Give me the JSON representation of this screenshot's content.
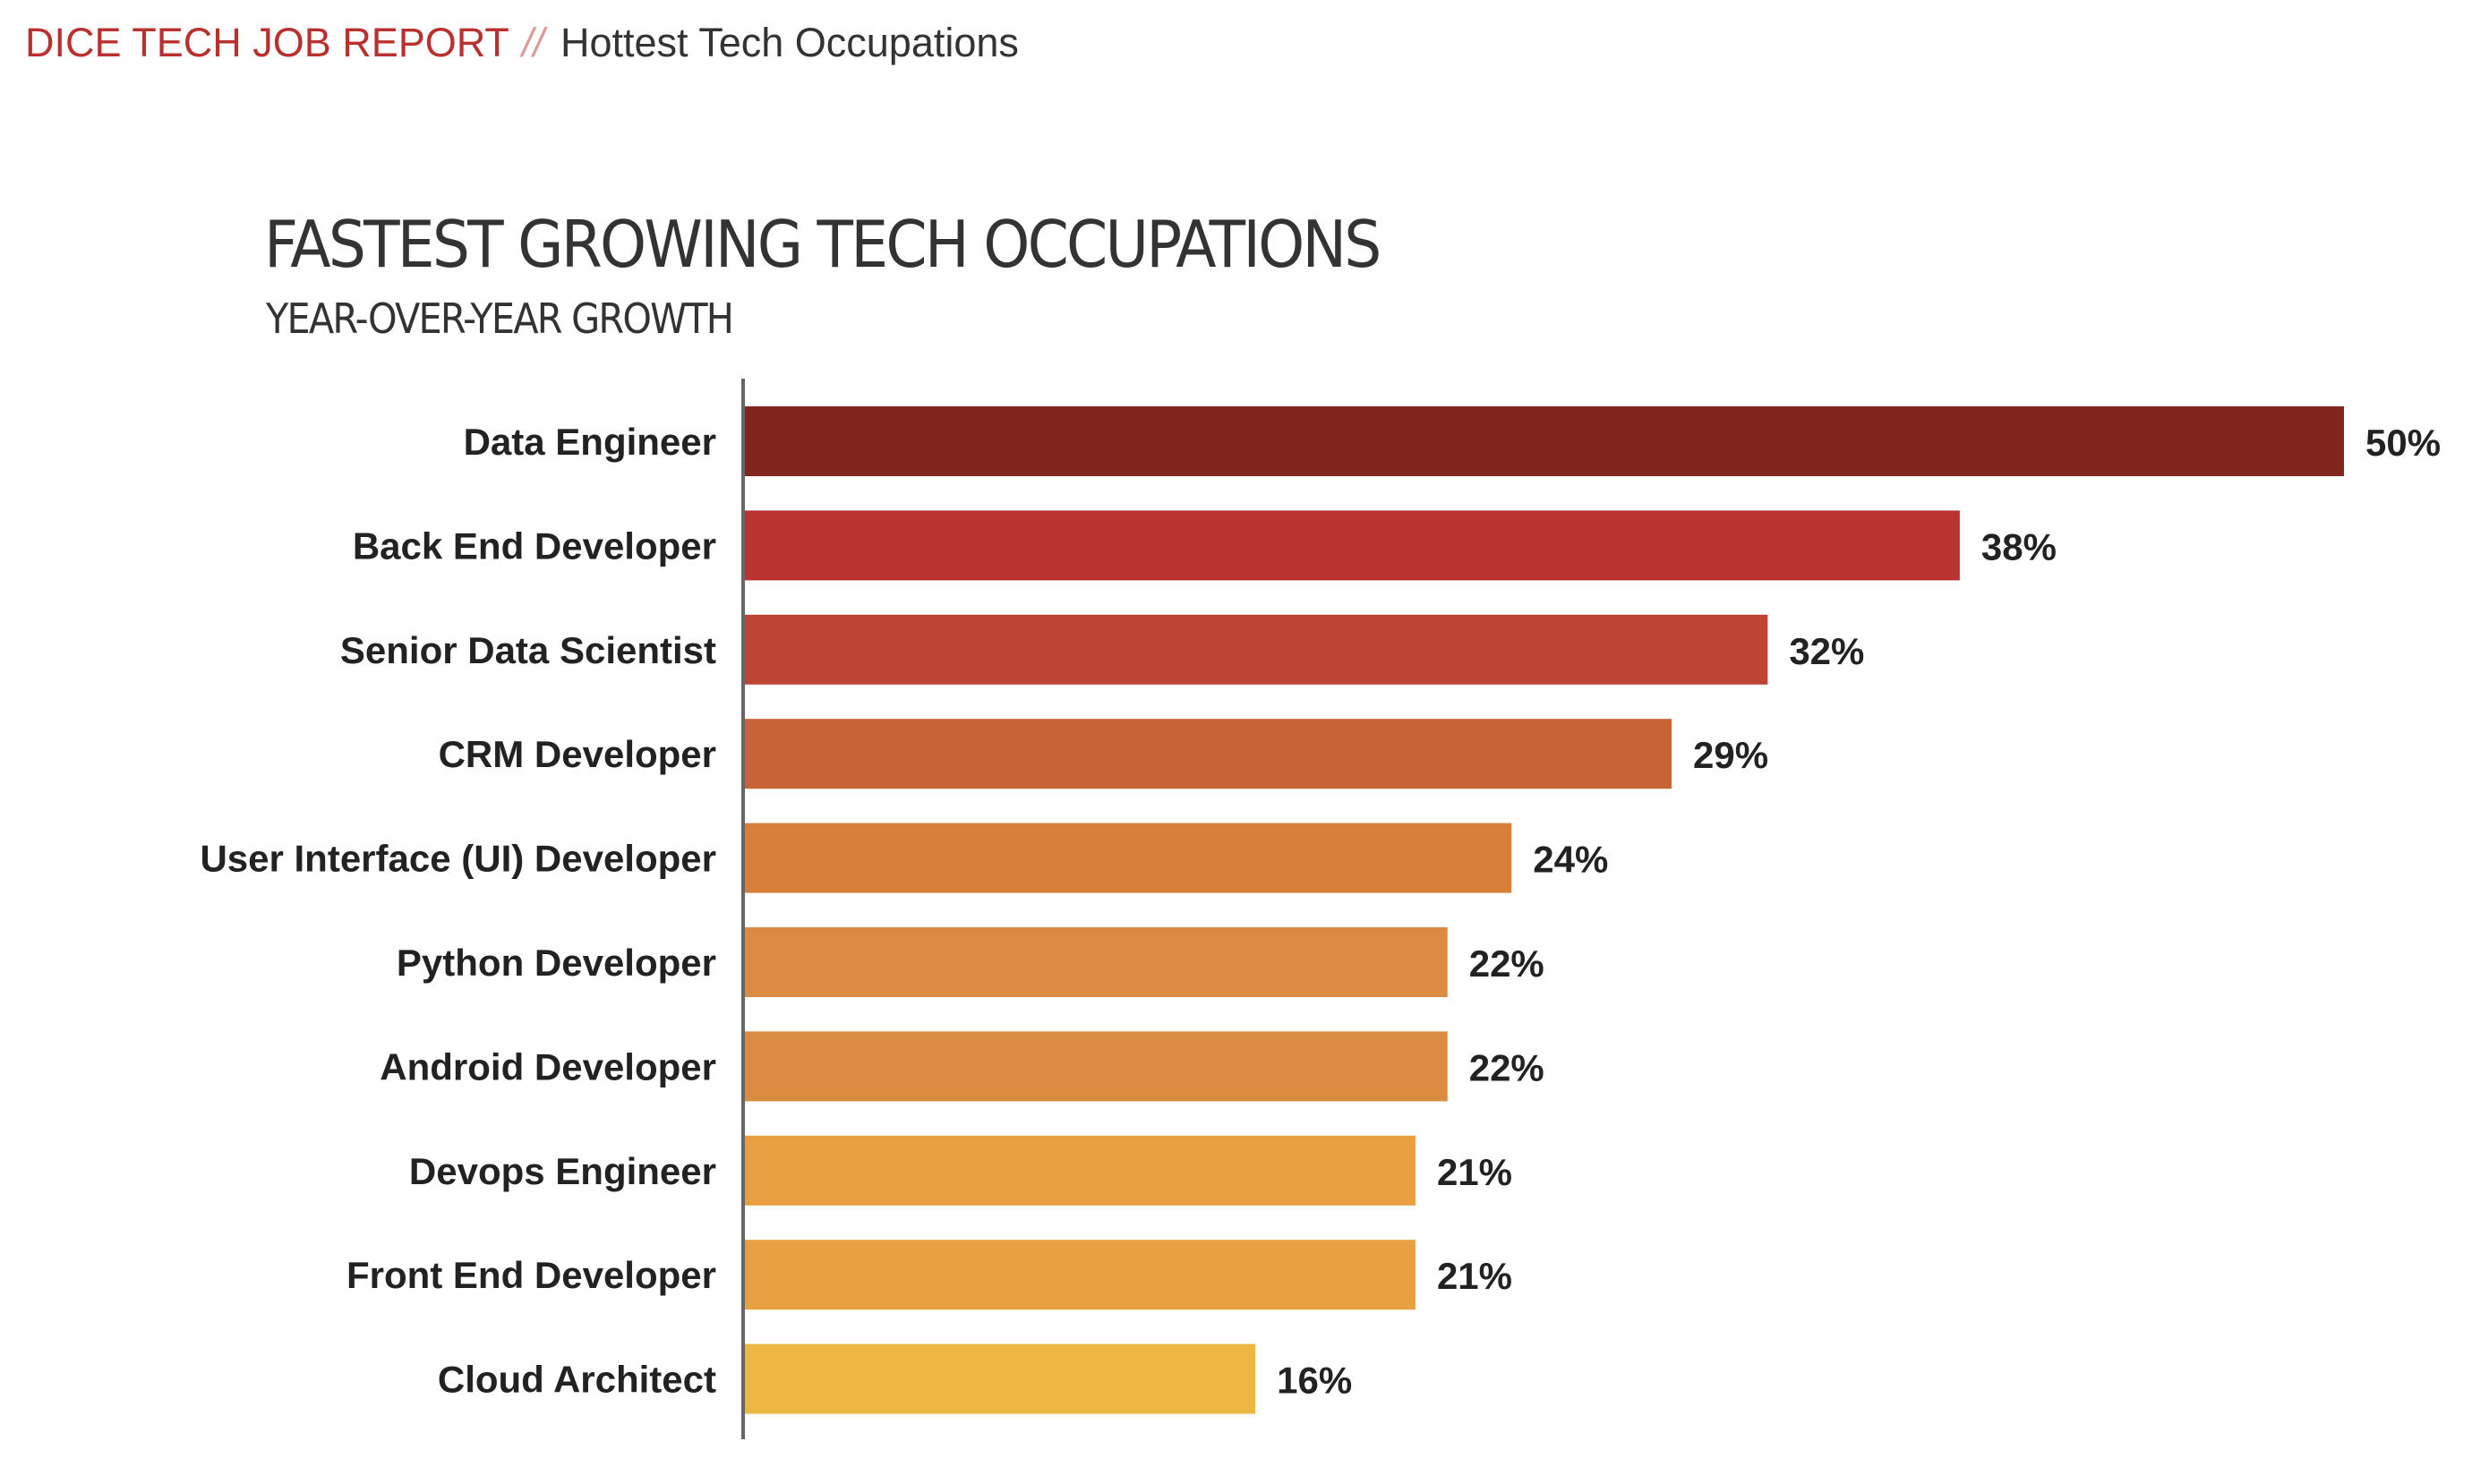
{
  "header": {
    "report_name": "DICE TECH JOB REPORT",
    "separator": "//",
    "page_name": "Hottest Tech Occupations"
  },
  "chart_data": {
    "type": "bar",
    "orientation": "horizontal",
    "title": "FASTEST GROWING TECH OCCUPATIONS",
    "subtitle": "YEAR-OVER-YEAR GROWTH",
    "xlabel": "",
    "ylabel": "",
    "unit": "%",
    "xlim": [
      0,
      50
    ],
    "grid": false,
    "legend": "none",
    "categories": [
      "Data Engineer",
      "Back End Developer",
      "Senior Data Scientist",
      "CRM Developer",
      "User Interface (UI) Developer",
      "Python Developer",
      "Android Developer",
      "Devops Engineer",
      "Front End Developer",
      "Cloud Architect"
    ],
    "values": [
      50,
      38,
      32,
      29,
      24,
      22,
      22,
      21,
      21,
      16
    ],
    "value_labels": [
      "50%",
      "38%",
      "32%",
      "29%",
      "24%",
      "22%",
      "22%",
      "21%",
      "21%",
      "16%"
    ],
    "colors": [
      "#82251f",
      "#b93331",
      "#bd4333",
      "#c76336",
      "#d87f3b",
      "#da8c40",
      "#da8c40",
      "#e89f40",
      "#e89f40",
      "#eeb643"
    ]
  },
  "colors": {
    "brand_red": "#b8312f",
    "text_dark": "#333333",
    "axis": "#666666"
  }
}
